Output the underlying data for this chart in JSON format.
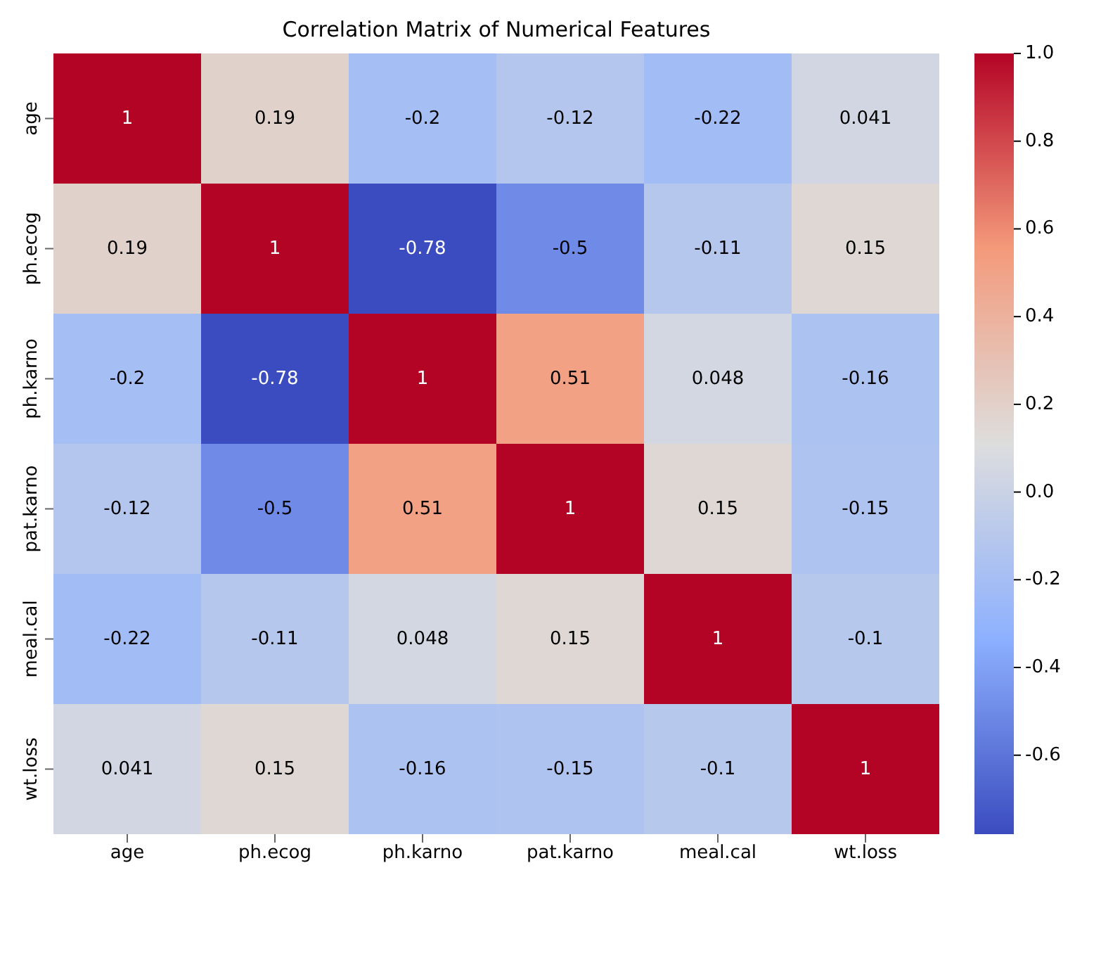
{
  "chart_data": {
    "type": "heatmap",
    "title": "Correlation Matrix of Numerical Features",
    "categories": [
      "age",
      "ph.ecog",
      "ph.karno",
      "pat.karno",
      "meal.cal",
      "wt.loss"
    ],
    "y_categories": [
      "age",
      "ph.ecog",
      "ph.karno",
      "pat.karno",
      "meal.cal",
      "wt.loss"
    ],
    "cells": [
      [
        1,
        0.19,
        -0.2,
        -0.12,
        -0.22,
        0.041
      ],
      [
        0.19,
        1,
        -0.78,
        -0.5,
        -0.11,
        0.15
      ],
      [
        -0.2,
        -0.78,
        1,
        0.51,
        0.048,
        -0.16
      ],
      [
        -0.12,
        -0.5,
        0.51,
        1,
        0.15,
        -0.15
      ],
      [
        -0.22,
        -0.11,
        0.048,
        0.15,
        1,
        -0.1
      ],
      [
        0.041,
        0.15,
        -0.16,
        -0.15,
        -0.1,
        1
      ]
    ],
    "clim": [
      -0.78,
      1
    ],
    "cticks": [
      -0.6,
      -0.4,
      -0.2,
      {
        "value": 0,
        "label": "0.0"
      },
      0.2,
      0.4,
      0.6,
      0.8,
      {
        "value": 1,
        "label": "1.0"
      }
    ],
    "data_labels": true
  }
}
